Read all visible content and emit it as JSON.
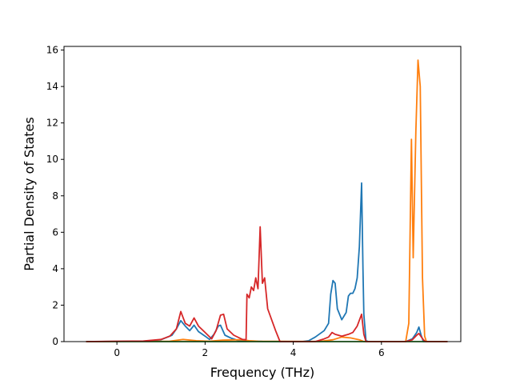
{
  "chart_data": {
    "type": "line",
    "title": "",
    "xlabel": "Frequency (THz)",
    "ylabel": "Partial Density of States",
    "xlim": [
      -1.2,
      7.8
    ],
    "ylim": [
      0,
      16.2
    ],
    "x_ticks": [
      0,
      2,
      4,
      6
    ],
    "y_ticks": [
      0,
      2,
      4,
      6,
      8,
      10,
      12,
      14,
      16
    ],
    "grid": false,
    "legend": "none",
    "series": [
      {
        "color": "#1f77b4",
        "points": [
          [
            -0.7,
            0
          ],
          [
            0.6,
            0.02
          ],
          [
            1.0,
            0.1
          ],
          [
            1.25,
            0.35
          ],
          [
            1.35,
            0.7
          ],
          [
            1.45,
            1.15
          ],
          [
            1.55,
            0.85
          ],
          [
            1.65,
            0.6
          ],
          [
            1.75,
            0.9
          ],
          [
            1.85,
            0.55
          ],
          [
            2.0,
            0.3
          ],
          [
            2.1,
            0.12
          ],
          [
            2.2,
            0.4
          ],
          [
            2.3,
            0.85
          ],
          [
            2.35,
            0.9
          ],
          [
            2.45,
            0.35
          ],
          [
            2.6,
            0.18
          ],
          [
            2.75,
            0.06
          ],
          [
            2.9,
            0.03
          ],
          [
            3.1,
            0.02
          ],
          [
            3.3,
            0.01
          ],
          [
            4.2,
            0
          ],
          [
            4.35,
            0.05
          ],
          [
            4.5,
            0.25
          ],
          [
            4.7,
            0.6
          ],
          [
            4.8,
            1.0
          ],
          [
            4.85,
            2.6
          ],
          [
            4.9,
            3.35
          ],
          [
            4.95,
            3.2
          ],
          [
            5.0,
            1.8
          ],
          [
            5.1,
            1.2
          ],
          [
            5.2,
            1.6
          ],
          [
            5.25,
            2.5
          ],
          [
            5.3,
            2.65
          ],
          [
            5.35,
            2.65
          ],
          [
            5.4,
            2.9
          ],
          [
            5.45,
            3.5
          ],
          [
            5.5,
            5.2
          ],
          [
            5.55,
            8.7
          ],
          [
            5.58,
            4.0
          ],
          [
            5.6,
            1.5
          ],
          [
            5.65,
            0.05
          ],
          [
            5.7,
            0
          ],
          [
            6.55,
            0
          ],
          [
            6.7,
            0.15
          ],
          [
            6.8,
            0.5
          ],
          [
            6.85,
            0.8
          ],
          [
            6.9,
            0.35
          ],
          [
            6.95,
            0
          ],
          [
            7.5,
            0
          ]
        ]
      },
      {
        "color": "#ff7f0e",
        "points": [
          [
            -0.7,
            0
          ],
          [
            1.2,
            0.02
          ],
          [
            1.5,
            0.12
          ],
          [
            1.8,
            0.05
          ],
          [
            2.1,
            0.02
          ],
          [
            2.4,
            0.08
          ],
          [
            2.8,
            0.1
          ],
          [
            3.0,
            0.05
          ],
          [
            3.2,
            0.02
          ],
          [
            4.6,
            0.01
          ],
          [
            4.9,
            0.1
          ],
          [
            5.1,
            0.25
          ],
          [
            5.3,
            0.2
          ],
          [
            5.5,
            0.1
          ],
          [
            5.6,
            0
          ],
          [
            6.55,
            0
          ],
          [
            6.62,
            1.0
          ],
          [
            6.68,
            11.1
          ],
          [
            6.72,
            4.6
          ],
          [
            6.78,
            11.5
          ],
          [
            6.83,
            15.45
          ],
          [
            6.88,
            14.0
          ],
          [
            6.93,
            3.5
          ],
          [
            6.98,
            0.3
          ],
          [
            7.02,
            0
          ],
          [
            7.5,
            0
          ]
        ]
      },
      {
        "color": "#2ca02c",
        "points": [
          [
            -0.7,
            0
          ],
          [
            7.5,
            0
          ]
        ]
      },
      {
        "color": "#d62728",
        "points": [
          [
            -0.7,
            0
          ],
          [
            0.6,
            0.03
          ],
          [
            1.0,
            0.12
          ],
          [
            1.2,
            0.3
          ],
          [
            1.35,
            0.7
          ],
          [
            1.45,
            1.65
          ],
          [
            1.55,
            1.0
          ],
          [
            1.65,
            0.85
          ],
          [
            1.75,
            1.3
          ],
          [
            1.85,
            0.85
          ],
          [
            2.0,
            0.5
          ],
          [
            2.15,
            0.15
          ],
          [
            2.25,
            0.6
          ],
          [
            2.35,
            1.45
          ],
          [
            2.42,
            1.5
          ],
          [
            2.5,
            0.7
          ],
          [
            2.65,
            0.35
          ],
          [
            2.85,
            0.12
          ],
          [
            2.93,
            0.1
          ],
          [
            2.95,
            2.6
          ],
          [
            3.0,
            2.4
          ],
          [
            3.05,
            3.0
          ],
          [
            3.1,
            2.8
          ],
          [
            3.15,
            3.5
          ],
          [
            3.2,
            2.9
          ],
          [
            3.25,
            6.3
          ],
          [
            3.3,
            3.2
          ],
          [
            3.35,
            3.5
          ],
          [
            3.42,
            1.8
          ],
          [
            3.6,
            0.6
          ],
          [
            3.7,
            0
          ],
          [
            4.5,
            0
          ],
          [
            4.7,
            0.15
          ],
          [
            4.8,
            0.25
          ],
          [
            4.88,
            0.5
          ],
          [
            4.95,
            0.4
          ],
          [
            5.1,
            0.3
          ],
          [
            5.25,
            0.4
          ],
          [
            5.35,
            0.5
          ],
          [
            5.45,
            0.85
          ],
          [
            5.55,
            1.5
          ],
          [
            5.6,
            0.4
          ],
          [
            5.65,
            0
          ],
          [
            6.55,
            0
          ],
          [
            6.7,
            0.1
          ],
          [
            6.8,
            0.35
          ],
          [
            6.85,
            0.45
          ],
          [
            6.95,
            0.1
          ],
          [
            7.0,
            0
          ],
          [
            7.5,
            0
          ]
        ]
      }
    ]
  }
}
